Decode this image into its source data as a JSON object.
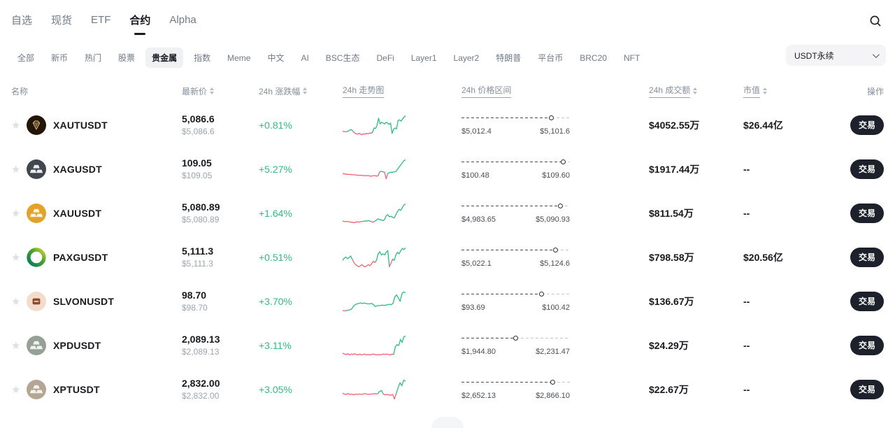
{
  "colors": {
    "green": "#2EBD85",
    "red": "#F56475",
    "dark": "#181A20",
    "muted": "#848E9C",
    "button_bg": "#1C212B"
  },
  "nav": {
    "tabs": [
      {
        "label": "自选",
        "active": false
      },
      {
        "label": "现货",
        "active": false
      },
      {
        "label": "ETF",
        "active": false
      },
      {
        "label": "合约",
        "active": true
      },
      {
        "label": "Alpha",
        "active": false
      }
    ]
  },
  "filters": {
    "categories": [
      {
        "label": "全部",
        "active": false
      },
      {
        "label": "新币",
        "active": false
      },
      {
        "label": "热门",
        "active": false
      },
      {
        "label": "股票",
        "active": false
      },
      {
        "label": "贵金属",
        "active": true
      },
      {
        "label": "指数",
        "active": false
      },
      {
        "label": "Meme",
        "active": false
      },
      {
        "label": "中文",
        "active": false
      },
      {
        "label": "AI",
        "active": false
      },
      {
        "label": "BSC生态",
        "active": false
      },
      {
        "label": "DeFi",
        "active": false
      },
      {
        "label": "Layer1",
        "active": false
      },
      {
        "label": "Layer2",
        "active": false
      },
      {
        "label": "特朗普",
        "active": false
      },
      {
        "label": "平台币",
        "active": false
      },
      {
        "label": "BRC20",
        "active": false
      },
      {
        "label": "NFT",
        "active": false
      }
    ],
    "quote_filter": "USDT永续"
  },
  "table": {
    "headers": {
      "name": "名称",
      "price": "最新价",
      "change": "24h 涨跌幅",
      "chart": "24h 走势图",
      "range": "24h 价格区间",
      "volume": "24h 成交额",
      "cap": "市值",
      "action": "操作"
    },
    "rows": [
      {
        "symbol": "XAUTUSDT",
        "price": "5,086.6",
        "price_usd": "$5,086.6",
        "change": "+0.81%",
        "range_low": "$5,012.4",
        "range_high": "$5,101.6",
        "range_pct": 83,
        "volume": "$4052.55万",
        "market_cap": "$26.44亿",
        "trade_label": "交易",
        "icon": {
          "style": "xaut",
          "bg": "#231608",
          "fg": "#C9A968"
        },
        "spark": [
          40,
          39.5,
          39,
          39.5,
          41,
          44,
          43.5,
          40,
          36,
          34,
          33,
          35,
          33,
          32,
          34,
          33,
          35,
          34,
          36,
          35,
          38,
          48,
          47,
          55,
          72,
          58,
          62,
          60,
          58,
          62,
          60,
          57,
          60,
          35,
          45,
          48,
          46,
          66,
          68,
          65,
          70,
          75,
          78
        ]
      },
      {
        "symbol": "XAGUSDT",
        "price": "109.05",
        "price_usd": "$109.05",
        "change": "+5.27%",
        "range_low": "$100.48",
        "range_high": "$109.60",
        "range_pct": 94,
        "volume": "$1917.44万",
        "market_cap": "--",
        "trade_label": "交易",
        "icon": {
          "style": "ingots",
          "bg": "#40474F",
          "fg": "#E8EAED"
        },
        "spark": [
          40,
          39,
          39,
          38,
          38,
          38,
          37,
          37,
          37,
          36,
          36,
          36,
          36,
          35,
          35,
          35,
          35,
          34,
          34,
          35,
          35,
          34,
          35,
          44,
          45,
          44,
          43,
          28,
          40,
          42,
          43,
          43,
          44,
          45,
          50,
          55,
          60,
          65,
          70,
          72
        ]
      },
      {
        "symbol": "XAUUSDT",
        "price": "5,080.89",
        "price_usd": "$5,080.89",
        "change": "+1.64%",
        "range_low": "$4,983.65",
        "range_high": "$5,090.93",
        "range_pct": 91,
        "volume": "$811.54万",
        "market_cap": "--",
        "trade_label": "交易",
        "icon": {
          "style": "ingots",
          "bg": "#E3A32B",
          "fg": "#FCF3DD"
        },
        "spark": [
          40,
          39.5,
          39,
          39.5,
          39,
          38,
          38,
          37,
          38,
          39,
          38,
          39,
          39.5,
          39.5,
          40.5,
          40,
          41,
          40,
          39,
          38,
          40,
          42,
          44,
          43,
          42,
          41,
          43,
          50,
          52,
          48,
          49,
          47,
          46,
          52,
          58,
          62,
          60,
          65,
          70,
          72
        ]
      },
      {
        "symbol": "PAXGUSDT",
        "price": "5,111.3",
        "price_usd": "$5,111.3",
        "change": "+0.51%",
        "range_low": "$5,022.1",
        "range_high": "$5,124.6",
        "range_pct": 87,
        "volume": "$798.58万",
        "market_cap": "$20.56亿",
        "trade_label": "交易",
        "icon": {
          "style": "paxg",
          "bg": "#ffffff",
          "fg": "#00845D"
        },
        "spark": [
          40,
          44,
          46,
          43,
          45,
          48,
          42,
          36,
          32,
          30,
          28,
          30,
          32,
          29,
          28,
          30,
          32,
          30,
          34,
          38,
          36,
          40,
          52,
          56,
          50,
          52,
          50,
          55,
          58,
          28,
          35,
          42,
          40,
          50,
          55,
          52,
          58,
          62,
          60,
          63
        ]
      },
      {
        "symbol": "SLVONUSDT",
        "price": "98.70",
        "price_usd": "$98.70",
        "change": "+3.70%",
        "range_low": "$93.69",
        "range_high": "$100.42",
        "range_pct": 74,
        "volume": "$136.67万",
        "market_cap": "--",
        "trade_label": "交易",
        "icon": {
          "style": "slvon",
          "bg": "#F3DCCB",
          "fg": "#8A4B2E"
        },
        "spark": [
          38,
          37.5,
          38,
          39,
          40,
          42,
          48,
          52,
          54,
          55,
          56,
          55,
          56,
          55,
          54,
          54,
          55,
          53,
          48,
          49,
          50,
          50,
          51,
          50,
          51,
          52,
          53,
          52,
          55,
          70,
          75,
          68,
          60,
          78,
          82,
          80
        ]
      },
      {
        "symbol": "XPDUSDT",
        "price": "2,089.13",
        "price_usd": "$2,089.13",
        "change": "+3.11%",
        "range_low": "$1,944.80",
        "range_high": "$2,231.47",
        "range_pct": 50,
        "volume": "$24.29万",
        "market_cap": "--",
        "trade_label": "交易",
        "icon": {
          "style": "ingots",
          "bg": "#97A096",
          "fg": "#F0F2EF"
        },
        "spark": [
          40,
          38,
          37,
          39,
          36,
          38,
          37,
          39,
          37,
          36,
          38,
          36,
          37,
          38,
          36,
          37,
          36,
          37,
          38,
          37,
          36,
          37,
          36,
          37,
          38,
          37,
          38,
          37,
          36,
          38,
          37,
          55,
          60,
          58,
          72,
          65,
          78,
          80
        ]
      },
      {
        "symbol": "XPTUSDT",
        "price": "2,832.00",
        "price_usd": "$2,832.00",
        "change": "+3.05%",
        "range_low": "$2,652.13",
        "range_high": "$2,866.10",
        "range_pct": 84,
        "volume": "$22.67万",
        "market_cap": "--",
        "trade_label": "交易",
        "icon": {
          "style": "ingots",
          "bg": "#B3A694",
          "fg": "#F5F1E9"
        },
        "spark": [
          40,
          38,
          37,
          39,
          37,
          38,
          36,
          38,
          37,
          38,
          37,
          38,
          39,
          38,
          37,
          38,
          38,
          39,
          38,
          39,
          45,
          47,
          38,
          36,
          37,
          36,
          35,
          37,
          25,
          40,
          55,
          68,
          60,
          75,
          72
        ]
      }
    ]
  }
}
